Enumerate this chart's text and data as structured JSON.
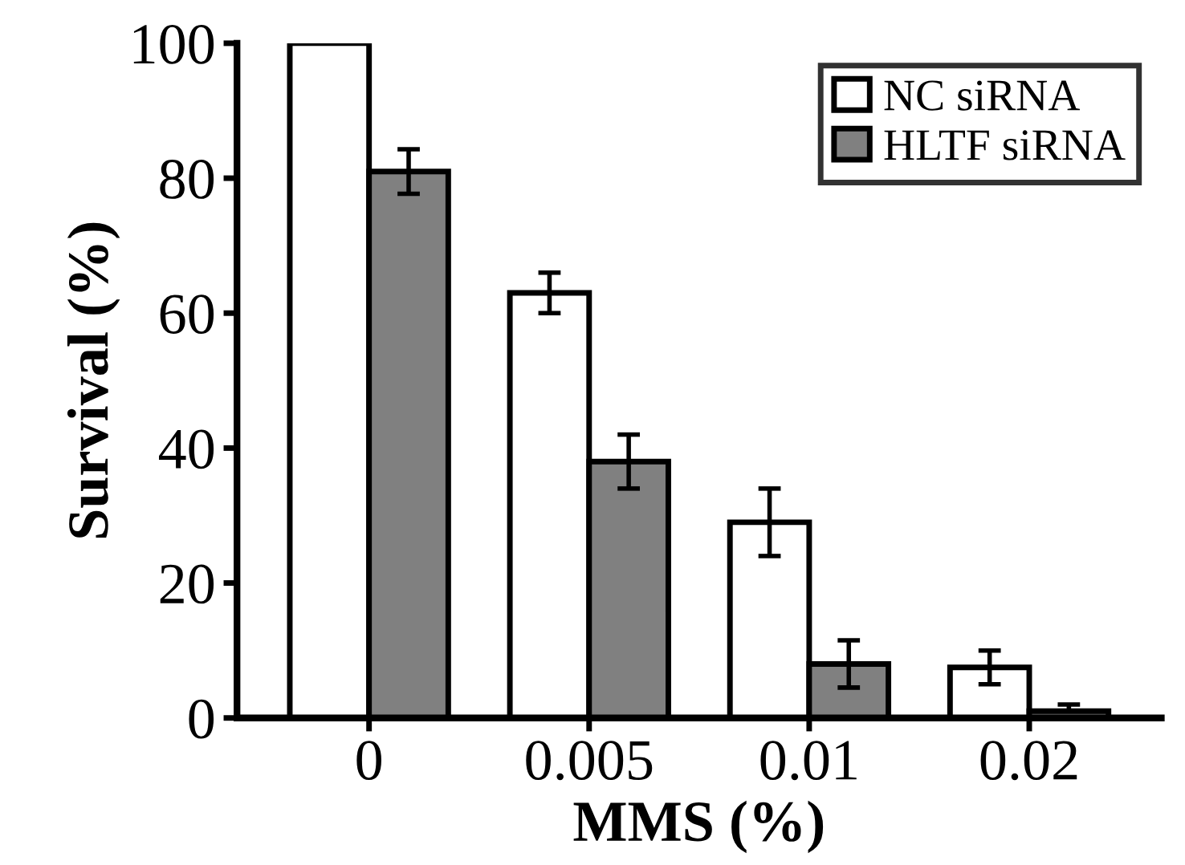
{
  "chart_data": {
    "type": "bar",
    "xlabel": "MMS (%)",
    "ylabel": "Survival (%)",
    "categories": [
      "0",
      "0.005",
      "0.01",
      "0.02"
    ],
    "series": [
      {
        "name": "NC siRNA",
        "color": "#ffffff",
        "values": [
          100,
          63,
          29,
          7.5
        ],
        "errors": [
          null,
          3,
          5,
          2.5
        ]
      },
      {
        "name": "HLTF siRNA",
        "color": "#808080",
        "values": [
          81,
          38,
          8,
          1
        ],
        "errors": [
          3.3,
          4,
          3.5,
          [
            1,
            2
          ]
        ]
      }
    ],
    "ylim": [
      0,
      100
    ],
    "yticks": [
      0,
      20,
      40,
      60,
      80,
      100
    ],
    "grid": false,
    "legend": "top right"
  }
}
